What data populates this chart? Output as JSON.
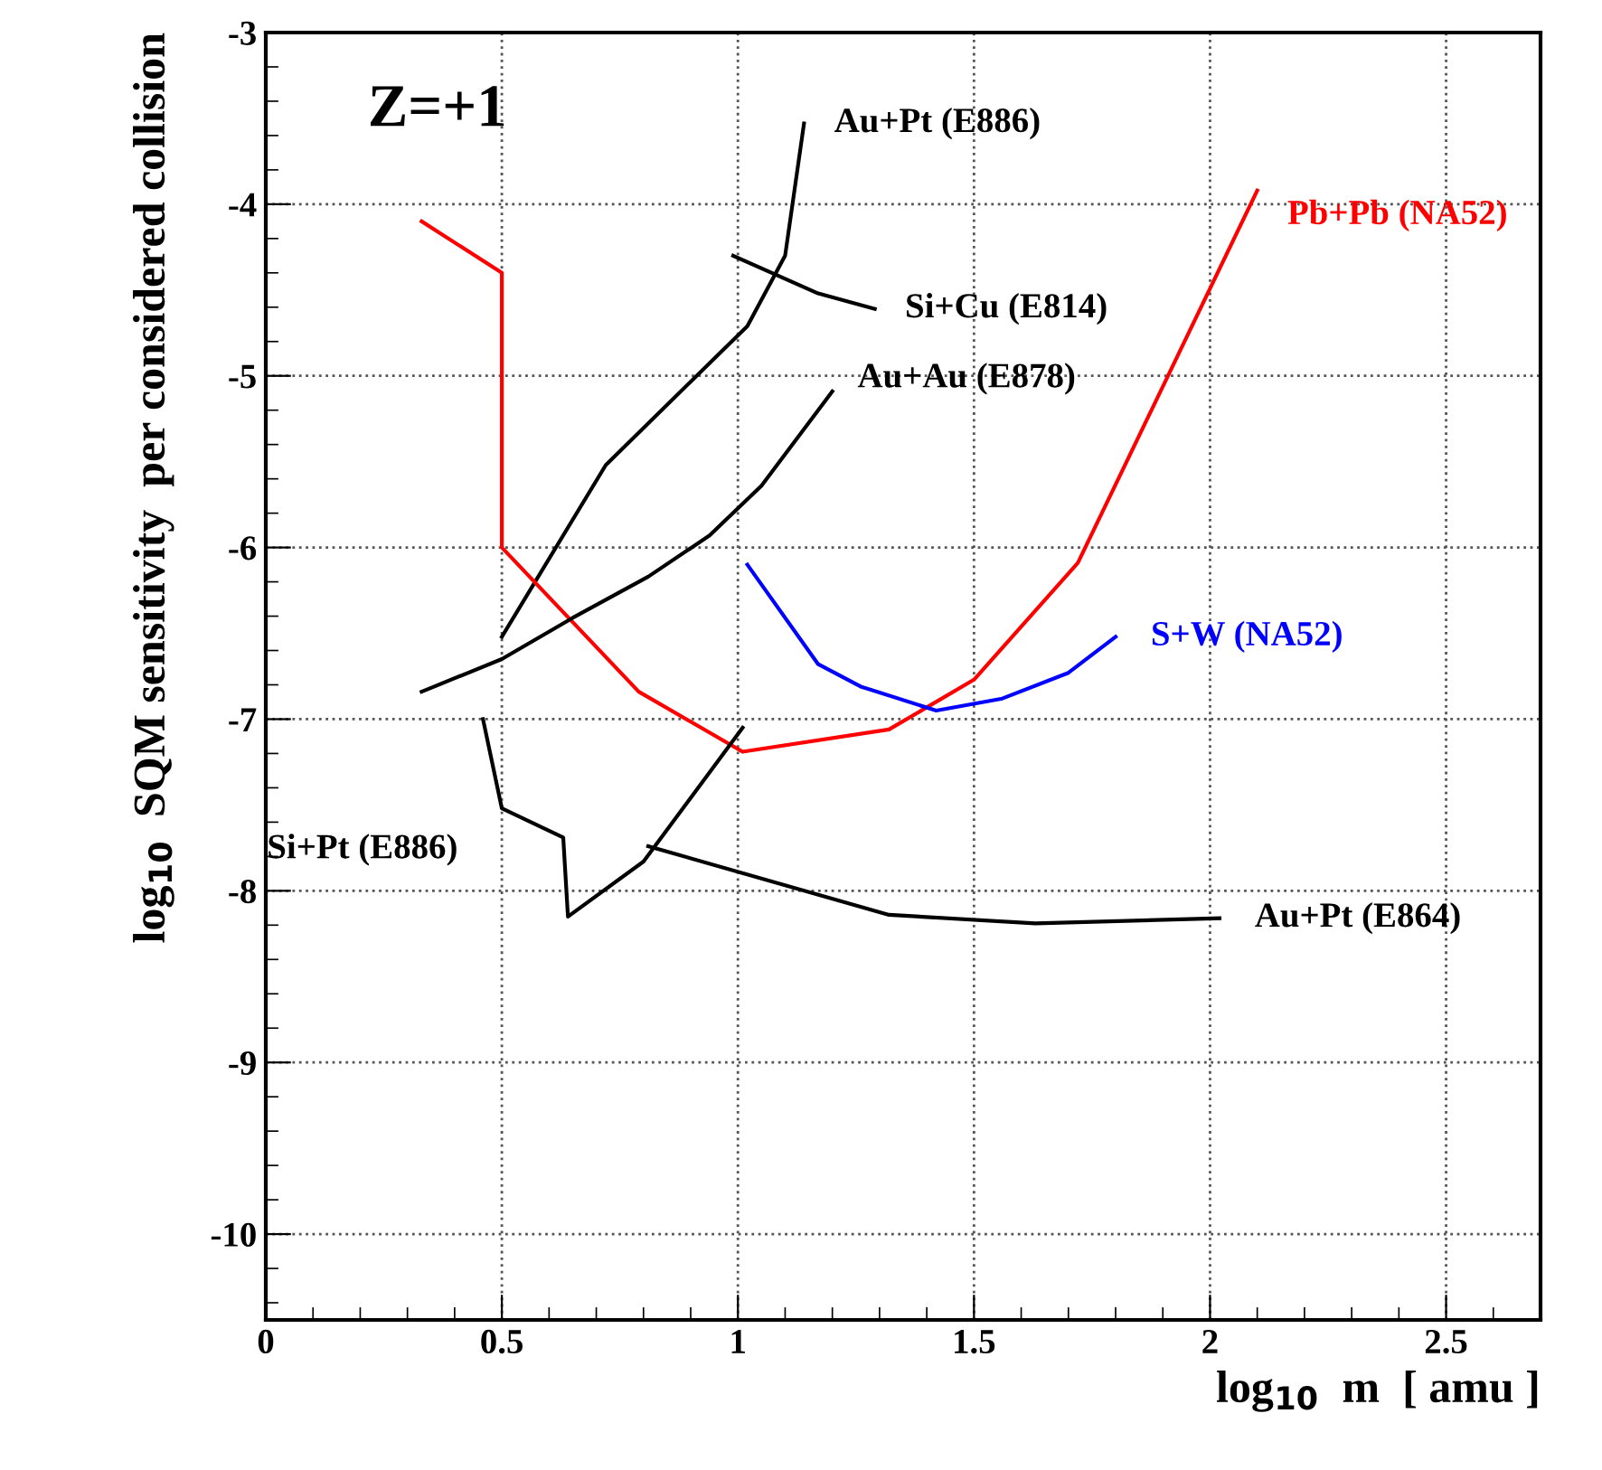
{
  "chart_data": {
    "type": "line",
    "xlabel": "log$_{10}$  m  [ amu ]",
    "ylabel": "log$_{10}$  SQM sensitivity  per considered collision",
    "annotations": [
      "Z=+1"
    ],
    "xlim": [
      0,
      2.7
    ],
    "xticks": [
      0,
      0.5,
      1,
      1.5,
      2,
      2.5
    ],
    "ylim": [
      -10.5,
      -3
    ],
    "yticks": [
      -10,
      -9,
      -8,
      -7,
      -6,
      -5,
      -4,
      -3
    ],
    "grid": true,
    "line_style": "solid",
    "marker": "none",
    "series": [
      {
        "name": "Au+Pt (E886)",
        "color": "#000000",
        "x": [
          0.5,
          0.72,
          1.02,
          1.1,
          1.14
        ],
        "values": [
          -6.52,
          -5.52,
          -4.71,
          -4.3,
          -3.53
        ]
      },
      {
        "name": "Pb+Pb (NA52)",
        "color": "#ff0000",
        "x": [
          0.33,
          0.5,
          0.5,
          0.79,
          1.01,
          1.32,
          1.5,
          1.72,
          2.1
        ],
        "values": [
          -4.1,
          -4.4,
          -6.0,
          -6.84,
          -7.19,
          -7.06,
          -6.77,
          -6.09,
          -3.92
        ]
      },
      {
        "name": "Si+Cu (E814)",
        "color": "#000000",
        "x": [
          0.99,
          1.17,
          1.29
        ],
        "values": [
          -4.3,
          -4.52,
          -4.61
        ]
      },
      {
        "name": "Au+Au (E878)",
        "color": "#000000",
        "x": [
          0.33,
          0.5,
          0.65,
          0.81,
          0.94,
          1.05,
          1.2
        ],
        "values": [
          -6.84,
          -6.65,
          -6.41,
          -6.17,
          -5.93,
          -5.64,
          -5.09
        ]
      },
      {
        "name": "S+W (NA52)",
        "color": "#0000ff",
        "x": [
          1.02,
          1.17,
          1.26,
          1.42,
          1.56,
          1.7,
          1.8
        ],
        "values": [
          -6.1,
          -6.68,
          -6.81,
          -6.95,
          -6.88,
          -6.73,
          -6.52
        ]
      },
      {
        "name": "Si+Pt (E886)",
        "color": "#000000",
        "x": [
          0.46,
          0.5,
          0.63,
          0.64,
          0.8,
          1.01
        ],
        "values": [
          -7.0,
          -7.52,
          -7.69,
          -8.15,
          -7.83,
          -7.05
        ]
      },
      {
        "name": "Au+Pt (E864)",
        "color": "#000000",
        "x": [
          0.81,
          1.32,
          1.63,
          2.02
        ],
        "values": [
          -7.74,
          -8.14,
          -8.19,
          -8.16
        ]
      }
    ]
  }
}
